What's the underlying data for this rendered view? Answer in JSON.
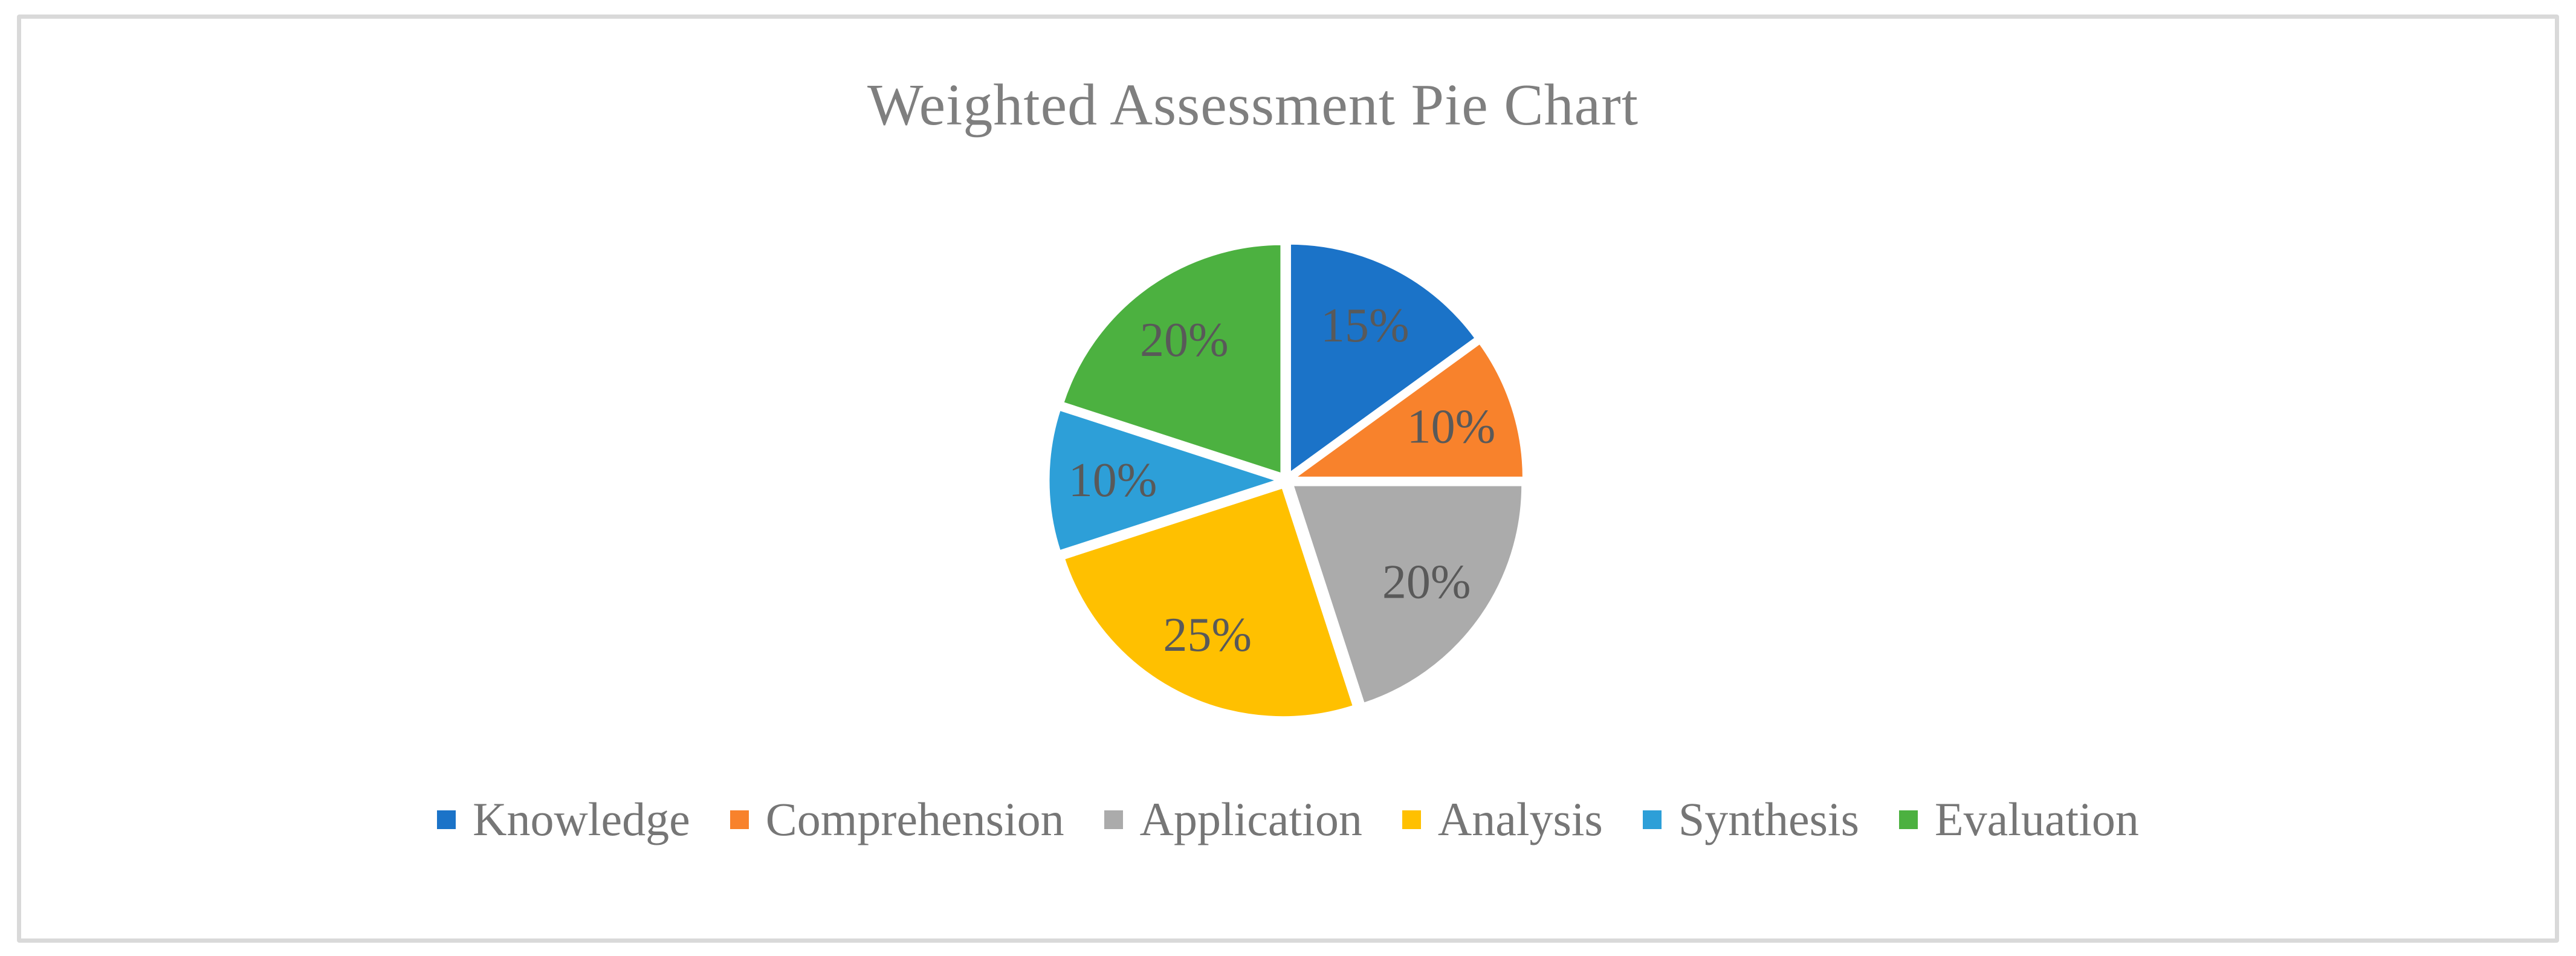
{
  "figure": {
    "background_color": "#FFFFFF",
    "frame_border_color": "#D9D9D9"
  },
  "chart_data": {
    "type": "pie",
    "title": "Weighted Assessment Pie Chart",
    "title_color": "#7F7F7F",
    "legend_position": "bottom",
    "start_angle_deg": 0,
    "direction": "clockwise",
    "exploded": true,
    "slice_border_color": "#FFFFFF",
    "data_label_color": "#595959",
    "legend_text_color": "#767676",
    "categories": [
      "Knowledge",
      "Comprehension",
      "Application",
      "Analysis",
      "Synthesis",
      "Evaluation"
    ],
    "values": [
      15,
      10,
      20,
      25,
      10,
      20
    ],
    "slices": [
      {
        "label": "Knowledge",
        "value": 15,
        "data_label": "15%",
        "color": "#1B73C8"
      },
      {
        "label": "Comprehension",
        "value": 10,
        "data_label": "10%",
        "color": "#F8822C"
      },
      {
        "label": "Application",
        "value": 20,
        "data_label": "20%",
        "color": "#ABABAB"
      },
      {
        "label": "Analysis",
        "value": 25,
        "data_label": "25%",
        "color": "#FFC000"
      },
      {
        "label": "Synthesis",
        "value": 10,
        "data_label": "10%",
        "color": "#2D9FD8"
      },
      {
        "label": "Evaluation",
        "value": 20,
        "data_label": "20%",
        "color": "#4CB140"
      }
    ]
  }
}
